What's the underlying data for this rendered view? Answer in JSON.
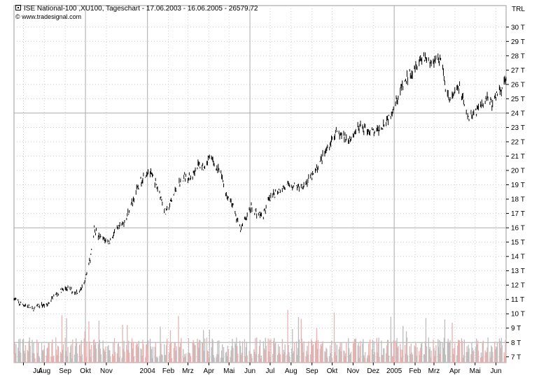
{
  "header": {
    "title": "ISE National-100 ,XU100, Tageschart - 17.06.2003 - 16.06.2005 - 26579.72",
    "source": "© www.tradesignal.com"
  },
  "chart_data": {
    "type": "line",
    "title": "ISE National-100 ,XU100, Tageschart - 17.06.2003 - 16.06.2005 - 26579.72",
    "currency_label": "TRL",
    "y_unit": "T",
    "ylim": [
      6600,
      31500
    ],
    "y_ticks": [
      7000,
      8000,
      9000,
      10000,
      11000,
      12000,
      13000,
      14000,
      15000,
      16000,
      17000,
      18000,
      19000,
      20000,
      21000,
      22000,
      23000,
      24000,
      25000,
      26000,
      27000,
      28000,
      29000,
      30000
    ],
    "y_tick_labels": [
      "7 T",
      "8 T",
      "9 T",
      "10 T",
      "11 T",
      "12 T",
      "13 T",
      "14 T",
      "15 T",
      "16 T",
      "17 T",
      "18 T",
      "19 T",
      "20 T",
      "21 T",
      "22 T",
      "23 T",
      "24 T",
      "25 T",
      "26 T",
      "27 T",
      "28 T",
      "29 T",
      "30 T"
    ],
    "y_major_lines": [
      8000,
      16000,
      24000
    ],
    "x_tick_labels": [
      "Jul",
      "Aug",
      "Sep",
      "Okt",
      "Nov",
      "2004",
      "Feb",
      "Mrz",
      "Apr",
      "Mai",
      "Jun",
      "Jul",
      "Aug",
      "Sep",
      "Okt",
      "Nov",
      "Dez",
      "2005",
      "Feb",
      "Mrz",
      "Apr",
      "Mai",
      "Jun"
    ],
    "x_tick_dates": [
      "2003-07-01",
      "2003-08-01",
      "2003-09-01",
      "2003-10-01",
      "2003-11-01",
      "2004-01-01",
      "2004-02-01",
      "2004-03-01",
      "2004-04-01",
      "2004-05-01",
      "2004-06-01",
      "2004-07-01",
      "2004-08-01",
      "2004-09-01",
      "2004-10-01",
      "2004-11-01",
      "2004-12-01",
      "2005-01-01",
      "2005-02-01",
      "2005-03-01",
      "2005-04-01",
      "2005-05-01",
      "2005-06-01"
    ],
    "x_major_lines": [
      "2003-10-01",
      "2004-01-01",
      "2004-06-01",
      "2005-01-01"
    ],
    "xlim": [
      "2003-06-17",
      "2005-06-16"
    ],
    "grid": true,
    "series": [
      {
        "values": [
          [
            "2003-06-17",
            11100
          ],
          [
            "2003-06-25",
            10700
          ],
          [
            "2003-07-05",
            10600
          ],
          [
            "2003-07-15",
            10300
          ],
          [
            "2003-07-25",
            10600
          ],
          [
            "2003-08-05",
            10600
          ],
          [
            "2003-08-15",
            11200
          ],
          [
            "2003-08-25",
            11600
          ],
          [
            "2003-09-05",
            11800
          ],
          [
            "2003-09-15",
            11500
          ],
          [
            "2003-09-25",
            11700
          ],
          [
            "2003-10-01",
            12600
          ],
          [
            "2003-10-08",
            13800
          ],
          [
            "2003-10-14",
            16000
          ],
          [
            "2003-10-20",
            15400
          ],
          [
            "2003-10-28",
            15200
          ],
          [
            "2003-11-05",
            15000
          ],
          [
            "2003-11-15",
            15800
          ],
          [
            "2003-11-25",
            16200
          ],
          [
            "2003-12-05",
            17200
          ],
          [
            "2003-12-15",
            18500
          ],
          [
            "2003-12-25",
            19500
          ],
          [
            "2004-01-02",
            20000
          ],
          [
            "2004-01-10",
            19400
          ],
          [
            "2004-01-20",
            18300
          ],
          [
            "2004-01-28",
            17000
          ],
          [
            "2004-02-05",
            17800
          ],
          [
            "2004-02-15",
            19000
          ],
          [
            "2004-02-25",
            19600
          ],
          [
            "2004-03-05",
            19400
          ],
          [
            "2004-03-15",
            20400
          ],
          [
            "2004-03-25",
            20200
          ],
          [
            "2004-04-02",
            21000
          ],
          [
            "2004-04-10",
            20400
          ],
          [
            "2004-04-20",
            19600
          ],
          [
            "2004-04-28",
            18200
          ],
          [
            "2004-05-05",
            17800
          ],
          [
            "2004-05-12",
            16600
          ],
          [
            "2004-05-18",
            16000
          ],
          [
            "2004-05-25",
            16600
          ],
          [
            "2004-06-03",
            17400
          ],
          [
            "2004-06-12",
            17000
          ],
          [
            "2004-06-20",
            16800
          ],
          [
            "2004-06-28",
            17800
          ],
          [
            "2004-07-10",
            18500
          ],
          [
            "2004-07-20",
            18800
          ],
          [
            "2004-08-01",
            19000
          ],
          [
            "2004-08-12",
            18800
          ],
          [
            "2004-08-25",
            19200
          ],
          [
            "2004-09-05",
            19800
          ],
          [
            "2004-09-15",
            20800
          ],
          [
            "2004-09-25",
            21600
          ],
          [
            "2004-10-05",
            22600
          ],
          [
            "2004-10-15",
            22400
          ],
          [
            "2004-10-28",
            22200
          ],
          [
            "2004-11-05",
            22800
          ],
          [
            "2004-11-15",
            23000
          ],
          [
            "2004-11-25",
            22800
          ],
          [
            "2004-12-05",
            22600
          ],
          [
            "2004-12-15",
            23200
          ],
          [
            "2004-12-25",
            23800
          ],
          [
            "2005-01-05",
            25000
          ],
          [
            "2005-01-15",
            26000
          ],
          [
            "2005-01-25",
            26800
          ],
          [
            "2005-02-05",
            27600
          ],
          [
            "2005-02-15",
            28000
          ],
          [
            "2005-02-25",
            27400
          ],
          [
            "2005-03-05",
            28000
          ],
          [
            "2005-03-12",
            27600
          ],
          [
            "2005-03-18",
            25800
          ],
          [
            "2005-03-25",
            24800
          ],
          [
            "2005-04-01",
            25400
          ],
          [
            "2005-04-08",
            25800
          ],
          [
            "2005-04-15",
            24500
          ],
          [
            "2005-04-22",
            23600
          ],
          [
            "2005-04-29",
            24000
          ],
          [
            "2005-05-06",
            24400
          ],
          [
            "2005-05-13",
            24800
          ],
          [
            "2005-05-20",
            25200
          ],
          [
            "2005-05-27",
            24500
          ],
          [
            "2005-06-03",
            25400
          ],
          [
            "2005-06-10",
            25800
          ],
          [
            "2005-06-16",
            26600
          ]
        ]
      }
    ],
    "volume_color": "#e6b3b3",
    "volume_alt_color": "#bdbdbd",
    "price_color": "#000000",
    "grid_color": "#cccccc"
  }
}
